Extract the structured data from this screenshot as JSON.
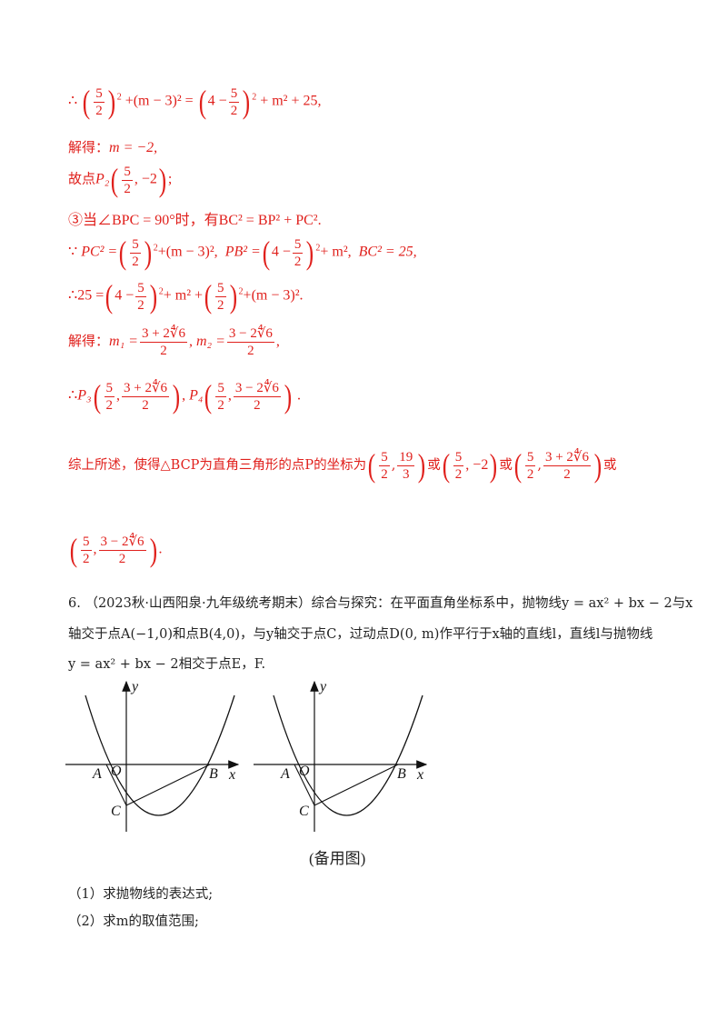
{
  "lines": {
    "l1": {
      "therefore": "∴",
      "expr_a": "+(m − 3)² =",
      "expr_b": "+ m² + 25,"
    },
    "l2": {
      "label": "解得：",
      "value": "m = −2,"
    },
    "l3": {
      "label": "故点",
      "point": "P₂",
      "value": "−2",
      "end": ";"
    },
    "l4": {
      "text": "③当∠BPC = 90°时，有BC² = BP² + PC².",
      "circled": "③"
    },
    "l5": {
      "because": "∵",
      "pc": "PC² =",
      "pc_tail": "+(m − 3)²,",
      "pb": "PB² =",
      "pb_tail": "+ m²,",
      "bc": "BC² = 25,"
    },
    "l6": {
      "therefore": "∴",
      "lhs": "25 =",
      "mid": "+ m² +",
      "tail": "+(m − 3)²."
    },
    "l7": {
      "label": "解得：",
      "m1": "m₁ =",
      "m1_num": "3 + 2∜6",
      "m1_den": "2",
      "m2": "m₂ =",
      "m2_num": "3 − 2∜6",
      "m2_den": "2",
      "end": ","
    },
    "l8": {
      "therefore": "∴",
      "p3": "P₃",
      "p4": "P₄",
      "comma": ",",
      "end": "."
    },
    "l9": {
      "text": "综上所述，使得△BCP为直角三角形的点P的坐标为",
      "or1": "或",
      "or2": "或",
      "or3": "或",
      "pt2_y": "−2"
    },
    "l10": {
      "end": "."
    }
  },
  "fractions": {
    "five_halves_num": "5",
    "five_halves_den": "2",
    "four_minus": "4 −",
    "nineteen_thirds_num": "19",
    "nineteen_thirds_den": "3",
    "plus_num": "3 + 2∜6",
    "minus_num": "3 − 2∜6",
    "two": "2"
  },
  "question": {
    "line1": "6.  （2023秋·山西阳泉·九年级统考期末）综合与探究：在平面直角坐标系中，抛物线y = ax² + bx − 2与x",
    "line2": "轴交于点A(−1,0)和点B(4,0)，与y轴交于点C，过动点D(0, m)作平行于x轴的直线l，直线l与抛物线",
    "line3": "y = ax² + bx − 2相交于点E，F.",
    "sub1": "（1）求抛物线的表达式;",
    "sub2": "（2）求m的取值范围;"
  },
  "figures": {
    "caption": "(备用图)",
    "labels": {
      "y": "y",
      "x": "x",
      "A": "A",
      "O": "O",
      "B": "B",
      "C": "C"
    }
  }
}
